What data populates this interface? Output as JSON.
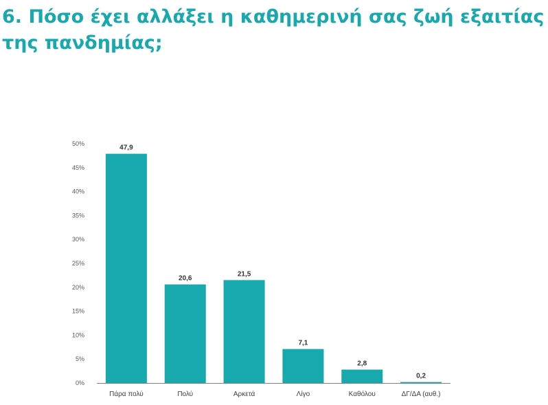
{
  "page": {
    "title": "6. Πόσο έχει αλλάξει η καθημερινή σας ζωή εξαιτίας της πανδημίας;"
  },
  "colors": {
    "accent": "#17a9ad",
    "bar": "#17a9ad",
    "axis": "#808080"
  },
  "chart_data": {
    "type": "bar",
    "categories": [
      "Πάρα πολύ",
      "Πολύ",
      "Αρκετά",
      "Λίγο",
      "Καθόλου",
      "ΔΓ/ΔΑ (αυθ.)"
    ],
    "values": [
      47.9,
      20.6,
      21.5,
      7.1,
      2.8,
      0.2
    ],
    "value_labels": [
      "47,9",
      "20,6",
      "21,5",
      "7,1",
      "2,8",
      "0,2"
    ],
    "ylim": [
      0,
      50
    ],
    "yticks": [
      "0%",
      "5%",
      "10%",
      "15%",
      "20%",
      "25%",
      "30%",
      "35%",
      "40%",
      "45%",
      "50%"
    ],
    "grid": false,
    "legend": "none"
  }
}
